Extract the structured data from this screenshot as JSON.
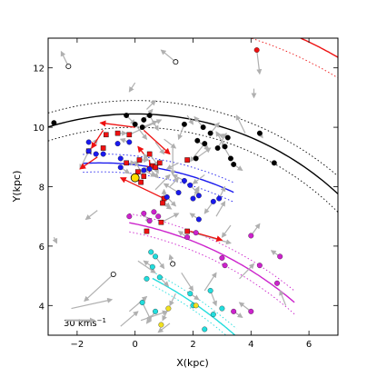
{
  "chart_data": {
    "type": "scatter",
    "xlabel": "X(kpc)",
    "ylabel": "Y(kpc)",
    "xlim": [
      -3,
      7
    ],
    "ylim": [
      3,
      13
    ],
    "xticks": [
      -2,
      0,
      2,
      4,
      6
    ],
    "yticks": [
      4,
      6,
      8,
      10,
      12
    ],
    "x_tick_labels": [
      "−2",
      "0",
      "2",
      "4",
      "6"
    ],
    "y_tick_labels": [
      "4",
      "6",
      "8",
      "10",
      "12"
    ],
    "grid": false,
    "scale_bar_label": "30 kms",
    "scale_bar_exponent": "−1",
    "scale_bar": {
      "x": -2.4,
      "y": 3.5,
      "length_kms": 30
    },
    "sun": {
      "x": 0.0,
      "y": 8.3,
      "color": "#ffdd00"
    },
    "colors": {
      "black": "#000000",
      "red": "#ee1111",
      "blue": "#1a1aee",
      "magenta": "#cc22cc",
      "cyan": "#22dddd",
      "yellow": "#f0e020",
      "gray": "#b0b0b0"
    },
    "arms": [
      {
        "name": "perseus",
        "color": "black",
        "center": [
          0,
          0
        ],
        "radius": 10.45,
        "width": 0.45,
        "x_from": -3,
        "x_to": 7
      },
      {
        "name": "outer",
        "color": "red",
        "center": [
          0,
          0
        ],
        "radius": 14.2,
        "width": 0.6,
        "x_from": 2.2,
        "x_to": 7
      },
      {
        "name": "local",
        "color": "blue",
        "center": [
          -1.2,
          -2.4
        ],
        "radius": 11.2,
        "width": 0.3,
        "x_from": -1.8,
        "x_to": 3.4
      },
      {
        "name": "sagittarius",
        "color": "magenta",
        "center": [
          -2.5,
          -5.5
        ],
        "radius": 12.5,
        "width": 0.3,
        "x_from": -0.2,
        "x_to": 5.5
      },
      {
        "name": "scutum",
        "color": "cyan",
        "center": [
          -6,
          -8
        ],
        "radius": 14.5,
        "width": 0.2,
        "x_from": 0.6,
        "x_to": 3.5
      }
    ],
    "points": [
      {
        "x": -2.8,
        "y": 10.15,
        "c": "black",
        "m": "o",
        "vx": 0,
        "vy": 0
      },
      {
        "x": -2.3,
        "y": 12.05,
        "c": "none",
        "m": "o",
        "vx": -0.25,
        "vy": 0.5
      },
      {
        "x": 1.4,
        "y": 12.2,
        "c": "none",
        "m": "o",
        "vx": -0.5,
        "vy": 0.4
      },
      {
        "x": 4.2,
        "y": 12.6,
        "c": "red",
        "m": "o",
        "vx": 0.1,
        "vy": -0.8
      },
      {
        "x": -0.3,
        "y": 10.4,
        "c": "black",
        "m": "o",
        "vx": 0.3,
        "vy": -0.3
      },
      {
        "x": 0.0,
        "y": 10.1,
        "c": "black",
        "m": "o",
        "vx": 0.4,
        "vy": -0.5
      },
      {
        "x": 0.3,
        "y": 10.25,
        "c": "black",
        "m": "o",
        "vx": 0.3,
        "vy": 0.35
      },
      {
        "x": 0.5,
        "y": 10.4,
        "c": "black",
        "m": "o",
        "vx": 0.3,
        "vy": -0.5
      },
      {
        "x": 0.25,
        "y": 10.0,
        "c": "black",
        "m": "o",
        "vx": 0.5,
        "vy": 0.2
      },
      {
        "x": 1.7,
        "y": 10.1,
        "c": "black",
        "m": "o",
        "vx": -0.2,
        "vy": -0.5
      },
      {
        "x": 2.35,
        "y": 10.0,
        "c": "black",
        "m": "o",
        "vx": -0.3,
        "vy": 0.35
      },
      {
        "x": 2.6,
        "y": 9.8,
        "c": "black",
        "m": "o",
        "vx": 0.3,
        "vy": 0.35
      },
      {
        "x": 2.15,
        "y": 9.55,
        "c": "black",
        "m": "o",
        "vx": 0.4,
        "vy": -0.3
      },
      {
        "x": 2.4,
        "y": 9.45,
        "c": "black",
        "m": "o",
        "vx": -0.5,
        "vy": -0.6
      },
      {
        "x": 2.85,
        "y": 9.3,
        "c": "black",
        "m": "o",
        "vx": 0.3,
        "vy": 0.5
      },
      {
        "x": 3.1,
        "y": 9.35,
        "c": "black",
        "m": "o",
        "vx": -0.3,
        "vy": 0.5
      },
      {
        "x": 3.2,
        "y": 9.65,
        "c": "black",
        "m": "o",
        "vx": -0.3,
        "vy": 0.1
      },
      {
        "x": 3.3,
        "y": 8.95,
        "c": "black",
        "m": "o",
        "vx": -0.3,
        "vy": 0.5
      },
      {
        "x": 3.4,
        "y": 8.75,
        "c": "black",
        "m": "o",
        "vx": 0.3,
        "vy": -0.2
      },
      {
        "x": 2.1,
        "y": 8.95,
        "c": "black",
        "m": "o",
        "vx": 0.5,
        "vy": 0.35
      },
      {
        "x": 4.8,
        "y": 8.8,
        "c": "black",
        "m": "o",
        "vx": 0.0,
        "vy": 0.0
      },
      {
        "x": 4.3,
        "y": 9.8,
        "c": "black",
        "m": "o",
        "vx": 0.1,
        "vy": -0.15
      },
      {
        "x": 3.8,
        "y": 9.8,
        "c": "gray",
        "m": "arrow",
        "vx": -0.3,
        "vy": 0.6
      },
      {
        "x": -0.2,
        "y": 9.75,
        "c": "red",
        "m": "s",
        "vx": 1.1,
        "vy": 0.5
      },
      {
        "x": -0.6,
        "y": 9.8,
        "c": "red",
        "m": "s",
        "vx": 0.3,
        "vy": 0.0
      },
      {
        "x": -1.0,
        "y": 9.75,
        "c": "red",
        "m": "s",
        "vx": 0.0,
        "vy": 0.0
      },
      {
        "x": -1.6,
        "y": 9.2,
        "c": "red",
        "m": "s",
        "vx": -0.3,
        "vy": -0.6
      },
      {
        "x": -1.1,
        "y": 9.3,
        "c": "red",
        "m": "s",
        "vx": 0.0,
        "vy": 0.0
      },
      {
        "x": -0.3,
        "y": 8.8,
        "c": "red",
        "m": "s",
        "vx": 0.3,
        "vy": 0.0
      },
      {
        "x": 0.15,
        "y": 8.9,
        "c": "red",
        "m": "s",
        "vx": 0.3,
        "vy": 0.0
      },
      {
        "x": 0.5,
        "y": 9.1,
        "c": "red",
        "m": "s",
        "vx": 0.3,
        "vy": -0.4
      },
      {
        "x": 0.6,
        "y": 8.7,
        "c": "red",
        "m": "s",
        "vx": -0.3,
        "vy": 0.4
      },
      {
        "x": 0.7,
        "y": 8.65,
        "c": "red",
        "m": "s",
        "vx": 0.1,
        "vy": -0.2
      },
      {
        "x": 0.85,
        "y": 8.8,
        "c": "red",
        "m": "s",
        "vx": 0.0,
        "vy": 0.0
      },
      {
        "x": 0.2,
        "y": 8.15,
        "c": "red",
        "m": "s",
        "vx": 0.0,
        "vy": 0.0
      },
      {
        "x": 0.3,
        "y": 8.35,
        "c": "red",
        "m": "s",
        "vx": -0.3,
        "vy": 0.5
      },
      {
        "x": 0.1,
        "y": 8.5,
        "c": "red",
        "m": "s",
        "vx": 0.4,
        "vy": 0.1
      },
      {
        "x": 1.0,
        "y": 7.6,
        "c": "red",
        "m": "s",
        "vx": 0.0,
        "vy": 0.3
      },
      {
        "x": 0.95,
        "y": 7.45,
        "c": "red",
        "m": "s",
        "vx": 0.3,
        "vy": -0.2
      },
      {
        "x": 1.8,
        "y": 8.9,
        "c": "red",
        "m": "s",
        "vx": 0.0,
        "vy": 0.0
      },
      {
        "x": 0.9,
        "y": 6.8,
        "c": "red",
        "m": "s",
        "vx": 0.6,
        "vy": 0.3
      },
      {
        "x": 0.4,
        "y": 6.5,
        "c": "red",
        "m": "s",
        "vx": 0.0,
        "vy": 0.0
      },
      {
        "x": 1.8,
        "y": 6.5,
        "c": "red",
        "m": "s",
        "vx": 1.5,
        "vy": -0.4
      },
      {
        "x": -1.6,
        "y": 9.5,
        "c": "blue",
        "m": "o",
        "vx": 0.0,
        "vy": 0.0
      },
      {
        "x": -1.6,
        "y": 9.2,
        "c": "blue",
        "m": "o",
        "vx": 0.3,
        "vy": 0.4
      },
      {
        "x": -1.35,
        "y": 9.1,
        "c": "blue",
        "m": "o",
        "vx": 0.0,
        "vy": 0.0
      },
      {
        "x": -1.1,
        "y": 9.1,
        "c": "blue",
        "m": "o",
        "vx": 0.0,
        "vy": 0.0
      },
      {
        "x": -0.5,
        "y": 8.95,
        "c": "blue",
        "m": "o",
        "vx": 0.0,
        "vy": 0.0
      },
      {
        "x": -0.6,
        "y": 9.45,
        "c": "blue",
        "m": "o",
        "vx": 0.0,
        "vy": 0.0
      },
      {
        "x": -0.2,
        "y": 9.5,
        "c": "blue",
        "m": "o",
        "vx": -0.3,
        "vy": 0.1
      },
      {
        "x": -0.5,
        "y": 8.65,
        "c": "blue",
        "m": "o",
        "vx": 0.3,
        "vy": -0.2
      },
      {
        "x": 0.3,
        "y": 8.55,
        "c": "blue",
        "m": "o",
        "vx": 0.4,
        "vy": -0.2
      },
      {
        "x": 0.5,
        "y": 8.6,
        "c": "blue",
        "m": "o",
        "vx": 0.3,
        "vy": -0.3
      },
      {
        "x": 1.7,
        "y": 8.2,
        "c": "blue",
        "m": "o",
        "vx": -0.4,
        "vy": 0.2
      },
      {
        "x": 1.9,
        "y": 8.05,
        "c": "blue",
        "m": "o",
        "vx": 0.3,
        "vy": -0.3
      },
      {
        "x": 1.5,
        "y": 7.8,
        "c": "blue",
        "m": "o",
        "vx": -0.5,
        "vy": 0.3
      },
      {
        "x": 1.1,
        "y": 7.65,
        "c": "blue",
        "m": "o",
        "vx": 0.3,
        "vy": -0.3
      },
      {
        "x": 2.0,
        "y": 7.6,
        "c": "blue",
        "m": "o",
        "vx": 0.2,
        "vy": 0.4
      },
      {
        "x": 2.2,
        "y": 7.7,
        "c": "blue",
        "m": "o",
        "vx": 0.0,
        "vy": 0.0
      },
      {
        "x": 2.7,
        "y": 7.5,
        "c": "blue",
        "m": "o",
        "vx": -0.3,
        "vy": -0.4
      },
      {
        "x": 2.9,
        "y": 7.6,
        "c": "blue",
        "m": "o",
        "vx": 0.2,
        "vy": 0.4
      },
      {
        "x": 2.2,
        "y": 6.9,
        "c": "blue",
        "m": "o",
        "vx": -0.3,
        "vy": 0.2
      },
      {
        "x": -0.2,
        "y": 7.0,
        "c": "magenta",
        "m": "o",
        "vx": 0.0,
        "vy": 0.0
      },
      {
        "x": 0.3,
        "y": 7.1,
        "c": "magenta",
        "m": "o",
        "vx": 0.2,
        "vy": -0.3
      },
      {
        "x": 0.5,
        "y": 6.85,
        "c": "magenta",
        "m": "o",
        "vx": 0.0,
        "vy": 0.0
      },
      {
        "x": 0.65,
        "y": 7.15,
        "c": "magenta",
        "m": "o",
        "vx": 0.0,
        "vy": 0.0
      },
      {
        "x": 0.8,
        "y": 7.0,
        "c": "magenta",
        "m": "o",
        "vx": 0.0,
        "vy": 0.0
      },
      {
        "x": 1.8,
        "y": 6.3,
        "c": "magenta",
        "m": "o",
        "vx": -0.3,
        "vy": 0.2
      },
      {
        "x": 2.1,
        "y": 6.45,
        "c": "magenta",
        "m": "o",
        "vx": 0.0,
        "vy": 0.0
      },
      {
        "x": 3.0,
        "y": 5.6,
        "c": "magenta",
        "m": "o",
        "vx": 0.0,
        "vy": 0.0
      },
      {
        "x": 3.1,
        "y": 5.35,
        "c": "magenta",
        "m": "o",
        "vx": 0.0,
        "vy": 0.0
      },
      {
        "x": 4.0,
        "y": 6.35,
        "c": "magenta",
        "m": "o",
        "vx": 0.3,
        "vy": 0.4
      },
      {
        "x": 5.0,
        "y": 5.65,
        "c": "magenta",
        "m": "o",
        "vx": -0.3,
        "vy": 0.2
      },
      {
        "x": 4.3,
        "y": 5.35,
        "c": "magenta",
        "m": "o",
        "vx": 0.0,
        "vy": 0.0
      },
      {
        "x": 4.9,
        "y": 4.75,
        "c": "magenta",
        "m": "o",
        "vx": 0.0,
        "vy": 0.0
      },
      {
        "x": 4.0,
        "y": 3.8,
        "c": "magenta",
        "m": "o",
        "vx": -0.4,
        "vy": 0.3
      },
      {
        "x": 3.4,
        "y": 3.8,
        "c": "magenta",
        "m": "o",
        "vx": 0.3,
        "vy": -0.2
      },
      {
        "x": 0.55,
        "y": 5.8,
        "c": "cyan",
        "m": "o",
        "vx": 0.0,
        "vy": 0.0
      },
      {
        "x": 0.7,
        "y": 5.65,
        "c": "cyan",
        "m": "o",
        "vx": 0.3,
        "vy": -0.4
      },
      {
        "x": 0.6,
        "y": 5.3,
        "c": "cyan",
        "m": "o",
        "vx": -0.3,
        "vy": 0.2
      },
      {
        "x": 0.4,
        "y": 4.9,
        "c": "cyan",
        "m": "o",
        "vx": 0.0,
        "vy": 0.0
      },
      {
        "x": 0.85,
        "y": 4.95,
        "c": "cyan",
        "m": "o",
        "vx": 0.3,
        "vy": -0.3
      },
      {
        "x": 0.25,
        "y": 4.1,
        "c": "cyan",
        "m": "o",
        "vx": 0.3,
        "vy": -0.6
      },
      {
        "x": 0.7,
        "y": 3.8,
        "c": "cyan",
        "m": "o",
        "vx": -0.3,
        "vy": -0.4
      },
      {
        "x": 1.9,
        "y": 4.4,
        "c": "cyan",
        "m": "o",
        "vx": 0.3,
        "vy": -0.2
      },
      {
        "x": 2.0,
        "y": 4.0,
        "c": "cyan",
        "m": "o",
        "vx": 0.0,
        "vy": 0.0
      },
      {
        "x": 2.6,
        "y": 4.5,
        "c": "cyan",
        "m": "o",
        "vx": 0.2,
        "vy": -0.5
      },
      {
        "x": 2.7,
        "y": 3.7,
        "c": "cyan",
        "m": "o",
        "vx": 0.0,
        "vy": 0.0
      },
      {
        "x": 3.0,
        "y": 3.9,
        "c": "cyan",
        "m": "o",
        "vx": 0.0,
        "vy": 0.0
      },
      {
        "x": 2.4,
        "y": 3.2,
        "c": "cyan",
        "m": "o",
        "vx": 0.0,
        "vy": 0.0
      },
      {
        "x": 2.1,
        "y": 4.0,
        "c": "yellow",
        "m": "o",
        "vx": 0.0,
        "vy": 0.0
      },
      {
        "x": 1.15,
        "y": 3.9,
        "c": "yellow",
        "m": "o",
        "vx": -0.2,
        "vy": -0.4
      },
      {
        "x": 0.9,
        "y": 3.35,
        "c": "yellow",
        "m": "o",
        "vx": 0.0,
        "vy": 0.0
      },
      {
        "x": -0.75,
        "y": 5.05,
        "c": "none",
        "m": "o",
        "vx": -1.0,
        "vy": -0.9
      },
      {
        "x": 1.3,
        "y": 5.4,
        "c": "none",
        "m": "o",
        "vx": -0.1,
        "vy": 0.3
      }
    ],
    "extra_arrows": [
      {
        "x": 0.0,
        "y": 11.5,
        "vx": -0.2,
        "vy": -0.3,
        "c": "gray"
      },
      {
        "x": 0.4,
        "y": 10.6,
        "vx": 0.3,
        "vy": 0.3,
        "c": "gray"
      },
      {
        "x": 1.8,
        "y": 10.4,
        "vx": 0.2,
        "vy": -0.3,
        "c": "gray"
      },
      {
        "x": 1.0,
        "y": 9.6,
        "vx": 0.4,
        "vy": -0.3,
        "c": "gray"
      },
      {
        "x": 1.3,
        "y": 9.3,
        "vx": 0.0,
        "vy": -0.9,
        "c": "gray"
      },
      {
        "x": 0.7,
        "y": 9.5,
        "vx": 0.3,
        "vy": -0.4,
        "c": "gray"
      },
      {
        "x": 2.4,
        "y": 8.4,
        "vx": -0.4,
        "vy": -0.3,
        "c": "gray"
      },
      {
        "x": 1.5,
        "y": 8.8,
        "vx": -0.4,
        "vy": -0.2,
        "c": "gray"
      },
      {
        "x": 1.2,
        "y": 8.0,
        "vx": 0.3,
        "vy": 0.3,
        "c": "gray"
      },
      {
        "x": 0.7,
        "y": 7.9,
        "vx": 0.5,
        "vy": 0.5,
        "c": "gray"
      },
      {
        "x": 0.9,
        "y": 7.6,
        "vx": 0.3,
        "vy": -0.3,
        "c": "gray"
      },
      {
        "x": 2.8,
        "y": 7.0,
        "vx": 0.3,
        "vy": 0.5,
        "c": "gray"
      },
      {
        "x": 3.3,
        "y": 6.7,
        "vx": -0.3,
        "vy": -0.4,
        "c": "gray"
      },
      {
        "x": -1.3,
        "y": 7.2,
        "vx": -0.4,
        "vy": -0.3,
        "c": "gray"
      },
      {
        "x": -2.8,
        "y": 6.3,
        "vx": 0.1,
        "vy": -0.2,
        "c": "gray"
      },
      {
        "x": -2.2,
        "y": 3.9,
        "vx": 1.4,
        "vy": 0.3,
        "c": "gray"
      },
      {
        "x": -0.5,
        "y": 3.3,
        "vx": 0.6,
        "vy": 0.5,
        "c": "gray"
      },
      {
        "x": -0.2,
        "y": 3.8,
        "vx": 0.6,
        "vy": 0.5,
        "c": "gray"
      },
      {
        "x": 0.2,
        "y": 3.5,
        "vx": 0.9,
        "vy": 0.3,
        "c": "gray"
      },
      {
        "x": 1.2,
        "y": 3.4,
        "vx": -0.4,
        "vy": -0.3,
        "c": "gray"
      },
      {
        "x": 1.6,
        "y": 5.1,
        "vx": 0.4,
        "vy": -0.6,
        "c": "gray"
      },
      {
        "x": 1.4,
        "y": 4.4,
        "vx": -0.2,
        "vy": -0.4,
        "c": "gray"
      },
      {
        "x": 0.1,
        "y": 5.5,
        "vx": 0.6,
        "vy": -0.4,
        "c": "gray"
      },
      {
        "x": 3.6,
        "y": 4.9,
        "vx": 0.5,
        "vy": 0.5,
        "c": "gray"
      },
      {
        "x": 2.4,
        "y": 4.5,
        "vx": 0.4,
        "vy": 0.6,
        "c": "gray"
      },
      {
        "x": 5.2,
        "y": 4.0,
        "vx": -0.2,
        "vy": 0.5,
        "c": "gray"
      },
      {
        "x": 4.1,
        "y": 11.3,
        "vx": 0.0,
        "vy": -0.3,
        "c": "gray"
      },
      {
        "x": 6.0,
        "y": 3.8,
        "vx": 0.0,
        "vy": 0.0,
        "c": "gray"
      }
    ],
    "red_vectors": [
      {
        "x": 0.0,
        "y": 10.0,
        "vx": -1.2,
        "vy": 0.15
      },
      {
        "x": -1.1,
        "y": 9.9,
        "vx": -0.4,
        "vy": -0.6
      },
      {
        "x": -1.3,
        "y": 9.0,
        "vx": -0.6,
        "vy": -0.4
      },
      {
        "x": 0.3,
        "y": 9.9,
        "vx": 0.9,
        "vy": -0.8
      },
      {
        "x": 0.5,
        "y": 8.9,
        "vx": 0.0,
        "vy": -0.4
      },
      {
        "x": 0.3,
        "y": 9.1,
        "vx": -0.2,
        "vy": 0.25
      },
      {
        "x": 1.0,
        "y": 7.6,
        "vx": -1.5,
        "vy": 0.7
      },
      {
        "x": 1.9,
        "y": 6.5,
        "vx": 1.1,
        "vy": -0.3
      }
    ]
  }
}
